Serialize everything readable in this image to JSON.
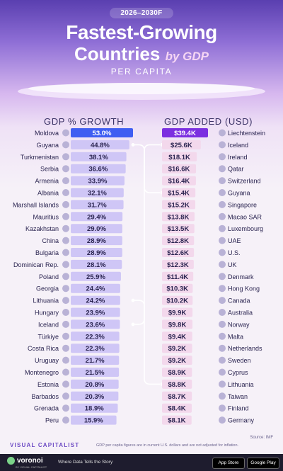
{
  "header": {
    "range": "2026–2030F",
    "title_line1": "Fastest-Growing",
    "title_line2": "Countries",
    "title_by": "by GDP",
    "subtitle": "PER CAPITA"
  },
  "colors": {
    "accent": "#3f5ef2",
    "accent_right": "#7b2fe0",
    "growth_bar": "#cfc6f6",
    "added_bar": "#f3d8ec",
    "connector": "#ffffff"
  },
  "chart_data": [
    {
      "type": "table",
      "title": "GDP % GROWTH",
      "rows": [
        {
          "country": "Moldova",
          "value": "53.0%",
          "num": 53.0,
          "flag": "moldova-flag"
        },
        {
          "country": "Guyana",
          "value": "44.8%",
          "num": 44.8,
          "flag": "guyana-flag"
        },
        {
          "country": "Turkmenistan",
          "value": "38.1%",
          "num": 38.1,
          "flag": "turkmenistan-flag"
        },
        {
          "country": "Serbia",
          "value": "36.6%",
          "num": 36.6,
          "flag": "serbia-flag"
        },
        {
          "country": "Armenia",
          "value": "33.9%",
          "num": 33.9,
          "flag": "armenia-flag"
        },
        {
          "country": "Albania",
          "value": "32.1%",
          "num": 32.1,
          "flag": "albania-flag"
        },
        {
          "country": "Marshall Islands",
          "value": "31.7%",
          "num": 31.7,
          "flag": "marshall-islands-flag"
        },
        {
          "country": "Mauritius",
          "value": "29.4%",
          "num": 29.4,
          "flag": "mauritius-flag"
        },
        {
          "country": "Kazakhstan",
          "value": "29.0%",
          "num": 29.0,
          "flag": "kazakhstan-flag"
        },
        {
          "country": "China",
          "value": "28.9%",
          "num": 28.9,
          "flag": "china-flag"
        },
        {
          "country": "Bulgaria",
          "value": "28.9%",
          "num": 28.9,
          "flag": "bulgaria-flag"
        },
        {
          "country": "Dominican Rep.",
          "value": "28.1%",
          "num": 28.1,
          "flag": "dominican-republic-flag"
        },
        {
          "country": "Poland",
          "value": "25.9%",
          "num": 25.9,
          "flag": "poland-flag"
        },
        {
          "country": "Georgia",
          "value": "24.4%",
          "num": 24.4,
          "flag": "georgia-flag"
        },
        {
          "country": "Lithuania",
          "value": "24.2%",
          "num": 24.2,
          "flag": "lithuania-flag"
        },
        {
          "country": "Hungary",
          "value": "23.9%",
          "num": 23.9,
          "flag": "hungary-flag"
        },
        {
          "country": "Iceland",
          "value": "23.6%",
          "num": 23.6,
          "flag": "iceland-flag"
        },
        {
          "country": "Türkiye",
          "value": "22.3%",
          "num": 22.3,
          "flag": "turkiye-flag"
        },
        {
          "country": "Costa Rica",
          "value": "22.3%",
          "num": 22.3,
          "flag": "costa-rica-flag"
        },
        {
          "country": "Uruguay",
          "value": "21.7%",
          "num": 21.7,
          "flag": "uruguay-flag"
        },
        {
          "country": "Montenegro",
          "value": "21.5%",
          "num": 21.5,
          "flag": "montenegro-flag"
        },
        {
          "country": "Estonia",
          "value": "20.8%",
          "num": 20.8,
          "flag": "estonia-flag"
        },
        {
          "country": "Barbados",
          "value": "20.3%",
          "num": 20.3,
          "flag": "barbados-flag"
        },
        {
          "country": "Grenada",
          "value": "18.9%",
          "num": 18.9,
          "flag": "grenada-flag"
        },
        {
          "country": "Peru",
          "value": "15.9%",
          "num": 15.9,
          "flag": "peru-flag"
        }
      ]
    },
    {
      "type": "table",
      "title": "GDP ADDED (USD)",
      "rows": [
        {
          "country": "Liechtenstein",
          "value": "$39.4K",
          "num": 39.4,
          "flag": "liechtenstein-flag"
        },
        {
          "country": "Iceland",
          "value": "$25.6K",
          "num": 25.6,
          "flag": "iceland-flag"
        },
        {
          "country": "Ireland",
          "value": "$18.1K",
          "num": 18.1,
          "flag": "ireland-flag"
        },
        {
          "country": "Qatar",
          "value": "$16.6K",
          "num": 16.6,
          "flag": "qatar-flag"
        },
        {
          "country": "Switzerland",
          "value": "$16.4K",
          "num": 16.4,
          "flag": "switzerland-flag"
        },
        {
          "country": "Guyana",
          "value": "$15.4K",
          "num": 15.4,
          "flag": "guyana-flag"
        },
        {
          "country": "Singapore",
          "value": "$15.2K",
          "num": 15.2,
          "flag": "singapore-flag"
        },
        {
          "country": "Macao SAR",
          "value": "$13.8K",
          "num": 13.8,
          "flag": "macao-flag"
        },
        {
          "country": "Luxembourg",
          "value": "$13.5K",
          "num": 13.5,
          "flag": "luxembourg-flag"
        },
        {
          "country": "UAE",
          "value": "$12.8K",
          "num": 12.8,
          "flag": "uae-flag"
        },
        {
          "country": "U.S.",
          "value": "$12.6K",
          "num": 12.6,
          "flag": "us-flag"
        },
        {
          "country": "UK",
          "value": "$12.3K",
          "num": 12.3,
          "flag": "uk-flag"
        },
        {
          "country": "Denmark",
          "value": "$11.4K",
          "num": 11.4,
          "flag": "denmark-flag"
        },
        {
          "country": "Hong Kong",
          "value": "$10.3K",
          "num": 10.3,
          "flag": "hong-kong-flag"
        },
        {
          "country": "Canada",
          "value": "$10.2K",
          "num": 10.2,
          "flag": "canada-flag"
        },
        {
          "country": "Australia",
          "value": "$9.9K",
          "num": 9.9,
          "flag": "australia-flag"
        },
        {
          "country": "Norway",
          "value": "$9.8K",
          "num": 9.8,
          "flag": "norway-flag"
        },
        {
          "country": "Malta",
          "value": "$9.4K",
          "num": 9.4,
          "flag": "malta-flag"
        },
        {
          "country": "Netherlands",
          "value": "$9.2K",
          "num": 9.2,
          "flag": "netherlands-flag"
        },
        {
          "country": "Sweden",
          "value": "$9.2K",
          "num": 9.2,
          "flag": "sweden-flag"
        },
        {
          "country": "Cyprus",
          "value": "$8.9K",
          "num": 8.9,
          "flag": "cyprus-flag"
        },
        {
          "country": "Lithuania",
          "value": "$8.8K",
          "num": 8.8,
          "flag": "lithuania-flag"
        },
        {
          "country": "Taiwan",
          "value": "$8.7K",
          "num": 8.7,
          "flag": "taiwan-flag"
        },
        {
          "country": "Finland",
          "value": "$8.4K",
          "num": 8.4,
          "flag": "finland-flag"
        },
        {
          "country": "Germany",
          "value": "$8.1K",
          "num": 8.1,
          "flag": "germany-flag"
        }
      ]
    }
  ],
  "footer": {
    "source": "Source: IMF",
    "brand": "VISUAL CAPITALIST",
    "note": "GDP per capita figures are in current U.S. dollars and are not adjusted for inflation.",
    "app_name": "voronoi",
    "app_sub": "BY VISUAL CAPITALIST",
    "tagline": "Where Data Tells the Story",
    "app_store": "App Store",
    "google_play": "Google Play"
  }
}
